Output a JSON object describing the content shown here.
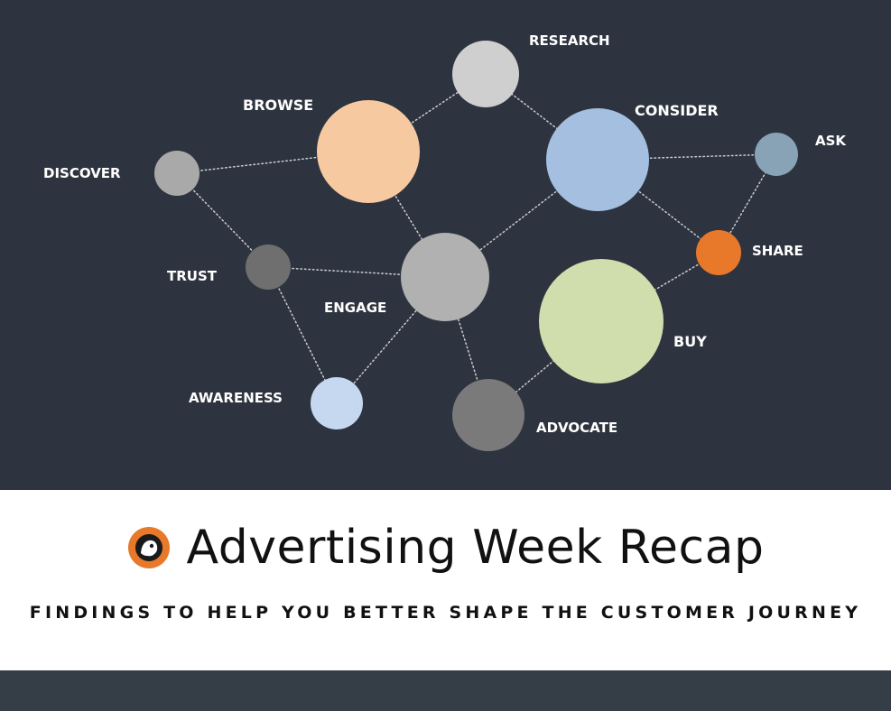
{
  "diagram": {
    "nodes": [
      {
        "id": "research",
        "label": "RESEARCH",
        "color": "#cfcfcf",
        "emphasis": false
      },
      {
        "id": "browse",
        "label": "BROWSE",
        "color": "#f7c9a0",
        "emphasis": true
      },
      {
        "id": "consider",
        "label": "CONSIDER",
        "color": "#a4bfe0",
        "emphasis": true
      },
      {
        "id": "ask",
        "label": "ASK",
        "color": "#87a3b5",
        "emphasis": false
      },
      {
        "id": "discover",
        "label": "DISCOVER",
        "color": "#a9a9a9",
        "emphasis": false
      },
      {
        "id": "share",
        "label": "SHARE",
        "color": "#e8782a",
        "emphasis": false
      },
      {
        "id": "trust",
        "label": "TRUST",
        "color": "#6f6f6f",
        "emphasis": false
      },
      {
        "id": "engage",
        "label": "ENGAGE",
        "color": "#b1b1b1",
        "emphasis": false
      },
      {
        "id": "buy",
        "label": "BUY",
        "color": "#d0deae",
        "emphasis": true
      },
      {
        "id": "awareness",
        "label": "AWARENESS",
        "color": "#c5d8f0",
        "emphasis": false
      },
      {
        "id": "advocate",
        "label": "ADVOCATE",
        "color": "#7a7a7a",
        "emphasis": false
      }
    ],
    "edges": [
      [
        "discover",
        "browse"
      ],
      [
        "discover",
        "trust"
      ],
      [
        "browse",
        "research"
      ],
      [
        "research",
        "consider"
      ],
      [
        "browse",
        "engage"
      ],
      [
        "consider",
        "engage"
      ],
      [
        "consider",
        "ask"
      ],
      [
        "consider",
        "share"
      ],
      [
        "ask",
        "share"
      ],
      [
        "share",
        "buy"
      ],
      [
        "trust",
        "engage"
      ],
      [
        "trust",
        "awareness"
      ],
      [
        "engage",
        "awareness"
      ],
      [
        "engage",
        "advocate"
      ],
      [
        "buy",
        "advocate"
      ]
    ],
    "edge_color": "#c9ccd1",
    "background": "#2e343f"
  },
  "banner": {
    "title": "Advertising Week Recap",
    "subtitle": "FINDINGS TO HELP YOU BETTER SHAPE THE CUSTOMER JOURNEY",
    "logo_icon": "orange-circle-mascot-icon",
    "accent_color": "#e8782a"
  }
}
